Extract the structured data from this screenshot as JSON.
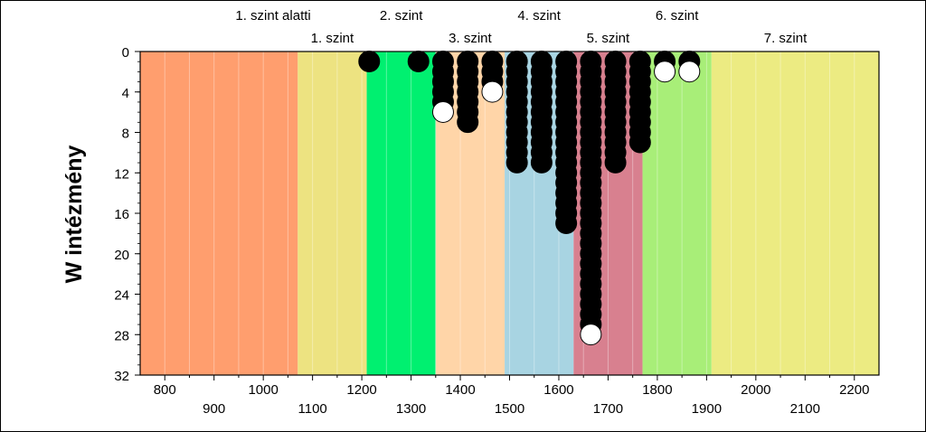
{
  "chart_data": {
    "type": "scatter",
    "title": "",
    "xlabel": "",
    "ylabel": "W intézmény",
    "xlim": [
      750,
      2250
    ],
    "ylim": [
      0,
      32
    ],
    "y_inverted": true,
    "y_ticks": [
      0,
      4,
      8,
      12,
      16,
      20,
      24,
      28,
      32
    ],
    "x_ticks_upper": [
      800,
      1000,
      1200,
      1400,
      1600,
      1800,
      2000,
      2200
    ],
    "x_ticks_lower": [
      900,
      1100,
      1300,
      1500,
      1700,
      1900,
      2100
    ],
    "bands": [
      {
        "label": "1. szint alatti",
        "from": 750,
        "to": 1070,
        "color": "#FF9E6E"
      },
      {
        "label": "1. szint",
        "from": 1070,
        "to": 1210,
        "color": "#EDE381"
      },
      {
        "label": "2. szint",
        "from": 1210,
        "to": 1350,
        "color": "#00F070"
      },
      {
        "label": "3. szint",
        "from": 1350,
        "to": 1490,
        "color": "#FFD5A8"
      },
      {
        "label": "4. szint",
        "from": 1490,
        "to": 1630,
        "color": "#A8D4E2"
      },
      {
        "label": "5. szint",
        "from": 1630,
        "to": 1770,
        "color": "#D8808F"
      },
      {
        "label": "6. szint",
        "from": 1770,
        "to": 1910,
        "color": "#A8EE78"
      },
      {
        "label": "7. szint",
        "from": 1910,
        "to": 2250,
        "color": "#ECEB82"
      }
    ],
    "columns": [
      {
        "x": 1215,
        "count": 1,
        "last_open": false
      },
      {
        "x": 1315,
        "count": 1,
        "last_open": false
      },
      {
        "x": 1365,
        "count": 6,
        "last_open": true
      },
      {
        "x": 1415,
        "count": 7,
        "last_open": false
      },
      {
        "x": 1465,
        "count": 4,
        "last_open": true
      },
      {
        "x": 1515,
        "count": 11,
        "last_open": false
      },
      {
        "x": 1565,
        "count": 11,
        "last_open": false
      },
      {
        "x": 1615,
        "count": 17,
        "last_open": false
      },
      {
        "x": 1665,
        "count": 28,
        "last_open": true
      },
      {
        "x": 1715,
        "count": 11,
        "last_open": false
      },
      {
        "x": 1765,
        "count": 9,
        "last_open": false
      },
      {
        "x": 1815,
        "count": 2,
        "last_open": true
      },
      {
        "x": 1865,
        "count": 2,
        "last_open": true
      }
    ],
    "grid": false,
    "legend": "none",
    "colors": {
      "filled_marker": "#000000",
      "open_marker": "#ffffff",
      "axis": "#000000"
    }
  }
}
